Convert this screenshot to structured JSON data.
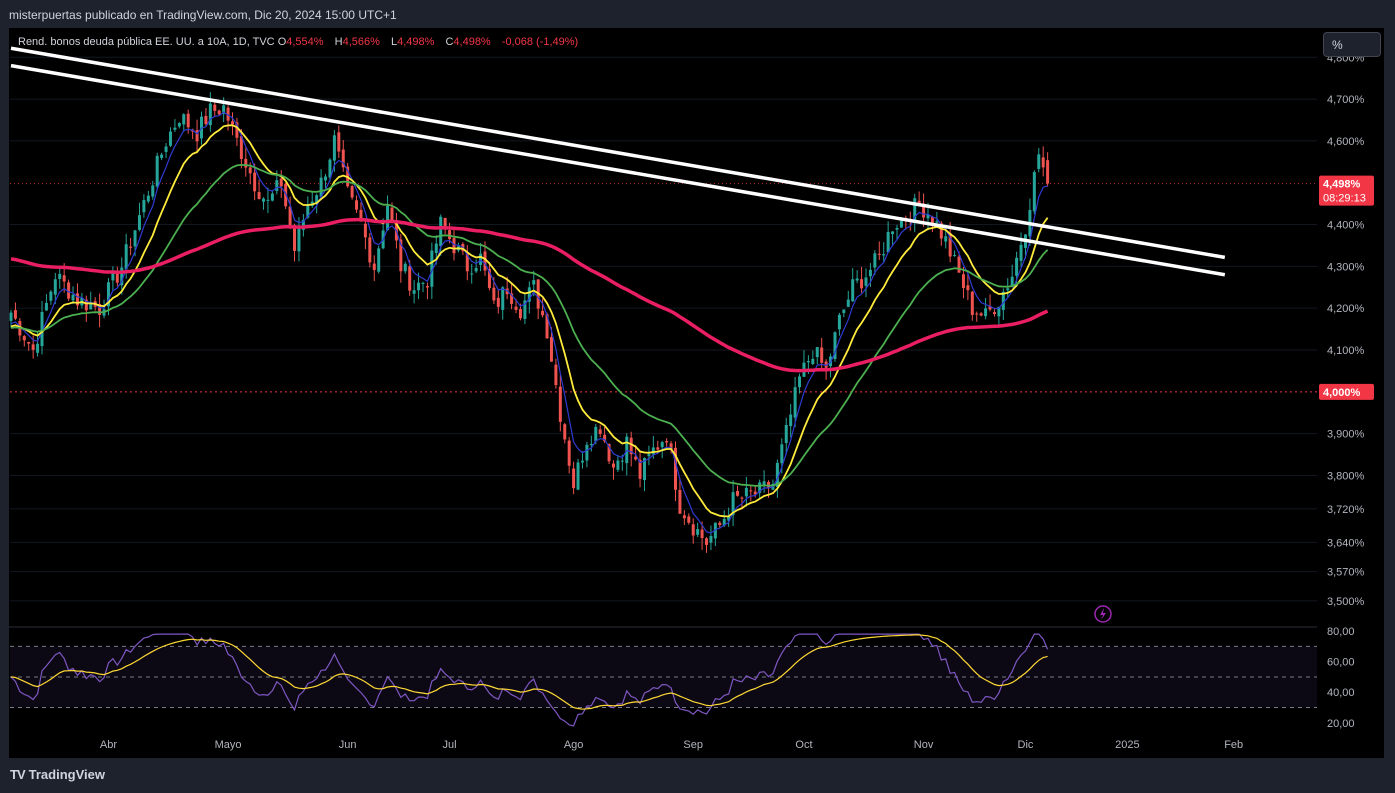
{
  "header": {
    "publisher": "misterpuertas publicado en TradingView.com, Dic 20, 2024 15:00 UTC+1"
  },
  "legend": {
    "symbol": "Rend. bonos deuda pública EE. UU. a 10A, 1D, TVC",
    "open_label": "O",
    "open_value": "4,554%",
    "high_label": "H",
    "high_value": "4,566%",
    "low_label": "L",
    "low_value": "4,498%",
    "close_label": "C",
    "close_value": "4,498%",
    "change": "-0,068 (-1,49%)"
  },
  "toolbar": {
    "scale_mode": "%"
  },
  "price_axis": {
    "ticks": [
      "4,800%",
      "4,700%",
      "4,600%",
      "4,400%",
      "4,300%",
      "4,200%",
      "4,100%",
      "3,900%",
      "3,800%",
      "3,720%",
      "3,640%",
      "3,570%",
      "3,500%"
    ],
    "tick_values": [
      4.8,
      4.7,
      4.6,
      4.4,
      4.3,
      4.2,
      4.1,
      3.9,
      3.8,
      3.72,
      3.64,
      3.57,
      3.5
    ],
    "last_price_label": "4,498%",
    "countdown": "08:29:13",
    "level_label": "4,000%",
    "level_value": 4.0,
    "last_price_value": 4.498
  },
  "rsi_axis": {
    "ticks": [
      "80,00",
      "60,00",
      "40,00",
      "20,00"
    ],
    "tick_values": [
      80,
      60,
      40,
      20
    ]
  },
  "time_axis": {
    "labels": [
      "Abr",
      "Mayo",
      "Jun",
      "Jul",
      "Ago",
      "Sep",
      "Oct",
      "Nov",
      "Dic",
      "2025",
      "Feb"
    ]
  },
  "colors": {
    "up": "#26a69a",
    "down": "#ef5350",
    "ma_fast": "#2f3bd1",
    "ma_mid": "#ffeb3b",
    "ma_slow": "#4caf50",
    "ma_long": "#e91e63",
    "trendline": "#ffffff",
    "rsi": "#7e57c2",
    "rsi_ma": "#fdd835",
    "level_line": "#f23645"
  },
  "footer": {
    "brand": "TradingView"
  },
  "chart_data": {
    "type": "candlestick",
    "ylim": [
      3.44,
      4.87
    ],
    "price_key_points": [
      [
        0,
        4.19
      ],
      [
        5,
        4.1
      ],
      [
        10,
        4.28
      ],
      [
        15,
        4.22
      ],
      [
        20,
        4.2
      ],
      [
        25,
        4.3
      ],
      [
        30,
        4.45
      ],
      [
        35,
        4.6
      ],
      [
        38,
        4.66
      ],
      [
        42,
        4.62
      ],
      [
        45,
        4.67
      ],
      [
        48,
        4.68
      ],
      [
        51,
        4.6
      ],
      [
        55,
        4.5
      ],
      [
        58,
        4.45
      ],
      [
        61,
        4.5
      ],
      [
        64,
        4.34
      ],
      [
        67,
        4.45
      ],
      [
        70,
        4.5
      ],
      [
        73,
        4.6
      ],
      [
        76,
        4.47
      ],
      [
        79,
        4.4
      ],
      [
        82,
        4.3
      ],
      [
        85,
        4.45
      ],
      [
        88,
        4.3
      ],
      [
        91,
        4.25
      ],
      [
        94,
        4.27
      ],
      [
        97,
        4.4
      ],
      [
        100,
        4.35
      ],
      [
        103,
        4.3
      ],
      [
        106,
        4.32
      ],
      [
        109,
        4.2
      ],
      [
        112,
        4.25
      ],
      [
        115,
        4.2
      ],
      [
        118,
        4.25
      ],
      [
        121,
        4.15
      ],
      [
        124,
        3.95
      ],
      [
        127,
        3.78
      ],
      [
        130,
        3.89
      ],
      [
        133,
        3.92
      ],
      [
        136,
        3.82
      ],
      [
        139,
        3.88
      ],
      [
        142,
        3.8
      ],
      [
        145,
        3.86
      ],
      [
        148,
        3.9
      ],
      [
        151,
        3.73
      ],
      [
        154,
        3.68
      ],
      [
        157,
        3.64
      ],
      [
        160,
        3.68
      ],
      [
        163,
        3.74
      ],
      [
        166,
        3.75
      ],
      [
        169,
        3.76
      ],
      [
        172,
        3.78
      ],
      [
        175,
        3.9
      ],
      [
        178,
        4.03
      ],
      [
        181,
        4.1
      ],
      [
        184,
        4.05
      ],
      [
        187,
        4.17
      ],
      [
        190,
        4.25
      ],
      [
        193,
        4.28
      ],
      [
        196,
        4.32
      ],
      [
        199,
        4.4
      ],
      [
        202,
        4.42
      ],
      [
        205,
        4.45
      ],
      [
        208,
        4.42
      ],
      [
        211,
        4.36
      ],
      [
        214,
        4.28
      ],
      [
        217,
        4.2
      ],
      [
        220,
        4.18
      ],
      [
        223,
        4.22
      ],
      [
        226,
        4.28
      ],
      [
        229,
        4.4
      ],
      [
        232,
        4.57
      ],
      [
        234,
        4.498
      ]
    ],
    "moving_averages": [
      {
        "period": "fast",
        "color": "#2f3bd1"
      },
      {
        "period": "mid",
        "color": "#ffeb3b"
      },
      {
        "period": "slow",
        "color": "#4caf50"
      },
      {
        "period": "long",
        "color": "#e91e63"
      }
    ],
    "trendlines": [
      {
        "from": [
          0,
          4.8215
        ],
        "to": [
          274,
          4.3215
        ]
      },
      {
        "from": [
          0,
          4.78
        ],
        "to": [
          274,
          4.28
        ]
      }
    ],
    "horizontal_levels": [
      4.0
    ],
    "rsi": {
      "ylim": [
        14,
        82
      ],
      "bands": [
        70,
        50,
        30
      ]
    }
  }
}
